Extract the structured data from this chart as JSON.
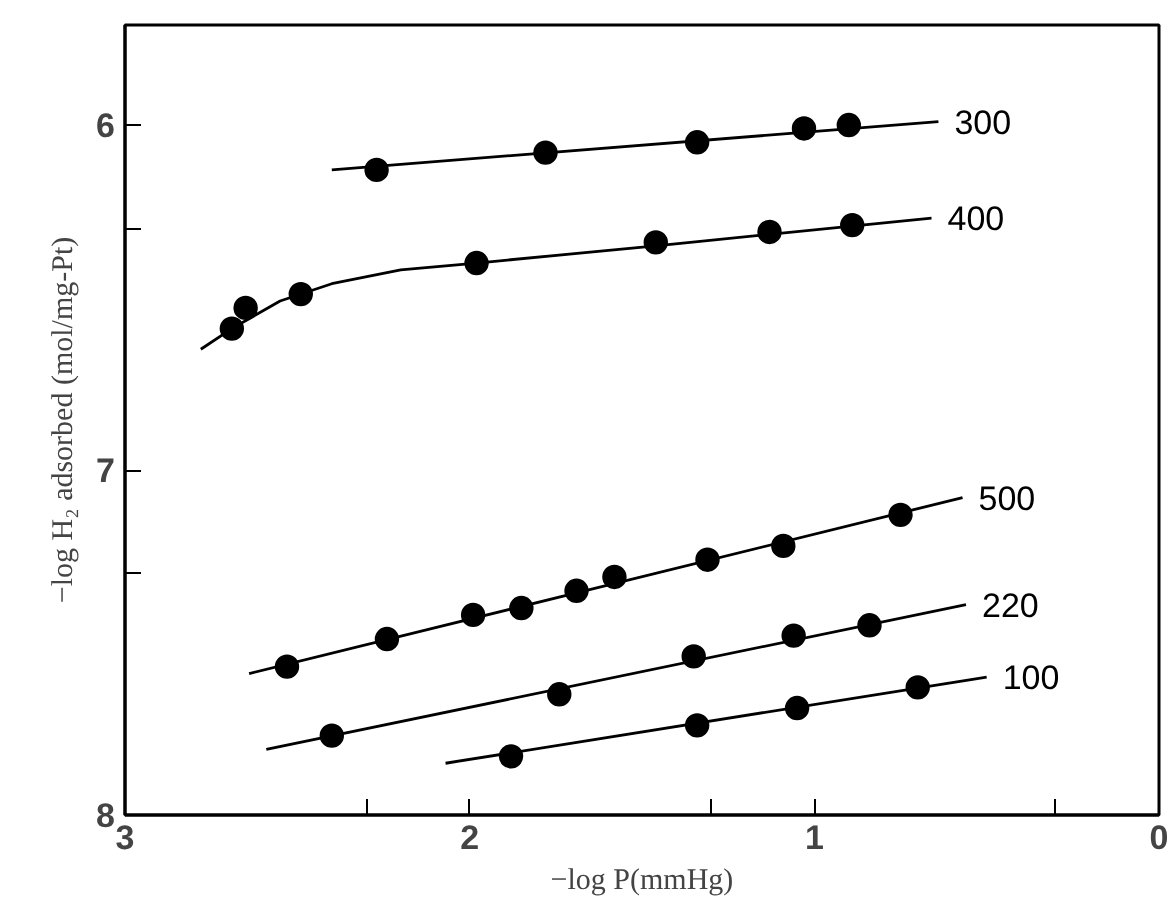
{
  "chart_data": {
    "type": "scatter",
    "xlabel": "−log P(mmHg)",
    "ylabel": "−log H₂ adsorbed (mol/mg-Pt)",
    "xlim": [
      3,
      0
    ],
    "ylim": [
      8,
      5.71
    ],
    "xticks": [
      3,
      {
        "value": 2.3,
        "label": null
      },
      2,
      {
        "value": 1.3,
        "label": null
      },
      1,
      {
        "value": 0.3,
        "label": null
      },
      0
    ],
    "yticks": [
      6,
      {
        "value": 6.3,
        "label": null
      },
      7,
      {
        "value": 7.3,
        "label": null
      },
      8
    ],
    "grid": false,
    "marker": "circle",
    "series": [
      {
        "name": "300",
        "type": "line",
        "marker": "none",
        "color": "#000000",
        "x": [
          2.4,
          0.64
        ],
        "values": [
          6.13,
          5.99
        ]
      },
      {
        "color": "#000000",
        "x": [
          2.27,
          1.78,
          1.34,
          1.03,
          0.9
        ],
        "values": [
          6.13,
          6.08,
          6.05,
          6.01,
          6.0
        ]
      },
      {
        "name": "400",
        "type": "line",
        "marker": "none",
        "color": "#000000",
        "x": [
          2.78,
          2.69,
          2.55,
          2.4,
          2.2,
          1.98,
          1.46,
          0.66
        ],
        "values": [
          6.65,
          6.59,
          6.51,
          6.46,
          6.42,
          6.4,
          6.35,
          6.27
        ]
      },
      {
        "color": "#000000",
        "x": [
          2.69,
          2.65,
          2.49,
          1.98,
          1.46,
          1.13,
          0.89
        ],
        "values": [
          6.59,
          6.53,
          6.49,
          6.4,
          6.34,
          6.31,
          6.29
        ]
      },
      {
        "name": "500",
        "type": "line",
        "marker": "none",
        "color": "#000000",
        "x": [
          2.64,
          0.57
        ],
        "values": [
          7.59,
          7.08
        ]
      },
      {
        "color": "#000000",
        "x": [
          2.53,
          2.24,
          1.99,
          1.85,
          1.69,
          1.58,
          1.31,
          1.09,
          0.75
        ],
        "values": [
          7.57,
          7.49,
          7.42,
          7.4,
          7.35,
          7.31,
          7.26,
          7.22,
          7.13
        ]
      },
      {
        "name": "220",
        "type": "line",
        "marker": "none",
        "color": "#000000",
        "x": [
          2.59,
          0.56
        ],
        "values": [
          7.81,
          7.39
        ]
      },
      {
        "color": "#000000",
        "x": [
          2.4,
          1.74,
          1.35,
          1.06,
          0.84
        ],
        "values": [
          7.77,
          7.65,
          7.54,
          7.48,
          7.45
        ]
      },
      {
        "name": "100",
        "type": "line",
        "marker": "none",
        "color": "#000000",
        "x": [
          2.07,
          0.5
        ],
        "values": [
          7.85,
          7.6
        ]
      },
      {
        "color": "#000000",
        "x": [
          1.88,
          1.34,
          1.05,
          0.7
        ],
        "values": [
          7.83,
          7.74,
          7.69,
          7.63
        ]
      }
    ]
  }
}
